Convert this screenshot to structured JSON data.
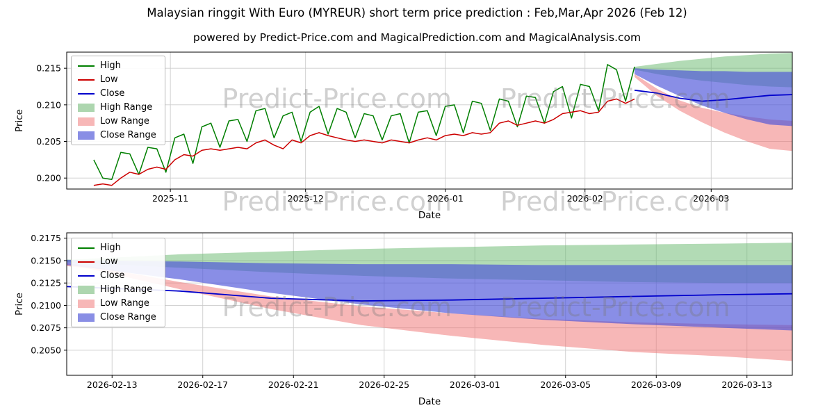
{
  "title": "Malaysian ringgit With Euro (MYREUR) short term price prediction : Feb,Mar,Apr 2026 (Feb 12)",
  "subtitle": "powered by Predict-Price.com and MagicalPrediction.com and MagicalAnalysis.com",
  "watermark": {
    "text": "Predict-Price.com"
  },
  "chart_data": [
    {
      "type": "line",
      "name": "history-and-prediction",
      "xlabel": "Date",
      "ylabel": "Price",
      "x_unit": "days since 2025-10-14",
      "xlim": [
        -5,
        156
      ],
      "ylim": [
        0.1985,
        0.2172
      ],
      "grid": true,
      "legend_position": "upper-left",
      "xticks": [
        {
          "v": 18,
          "label": "2025-11"
        },
        {
          "v": 48,
          "label": "2025-12"
        },
        {
          "v": 79,
          "label": "2026-01"
        },
        {
          "v": 110,
          "label": "2026-02"
        },
        {
          "v": 138,
          "label": "2026-03"
        }
      ],
      "yticks": [
        {
          "v": 0.2,
          "label": "0.200"
        },
        {
          "v": 0.205,
          "label": "0.205"
        },
        {
          "v": 0.21,
          "label": "0.210"
        },
        {
          "v": 0.215,
          "label": "0.215"
        }
      ],
      "legend": [
        {
          "label": "High",
          "swatch": "line",
          "color": "#007f00"
        },
        {
          "label": "Low",
          "swatch": "line",
          "color": "#cc0000"
        },
        {
          "label": "Close",
          "swatch": "line",
          "color": "#0000cc"
        },
        {
          "label": "High Range",
          "swatch": "patch",
          "color": "#add6af"
        },
        {
          "label": "Low Range",
          "swatch": "patch",
          "color": "#f7b7b7"
        },
        {
          "label": "Close Range",
          "swatch": "patch",
          "color": "#898ee5"
        }
      ],
      "bands": [
        {
          "name": "high-range",
          "color": "#66b86b",
          "opacity": 0.5,
          "x": [
            121,
            126,
            131,
            136,
            141,
            146,
            151,
            156
          ],
          "upper": [
            0.2152,
            0.2156,
            0.216,
            0.2163,
            0.2166,
            0.2168,
            0.217,
            0.2171
          ],
          "lower": [
            0.2148,
            0.2142,
            0.2137,
            0.2133,
            0.213,
            0.2127,
            0.2125,
            0.2124
          ]
        },
        {
          "name": "low-range",
          "color": "#f07070",
          "opacity": 0.5,
          "x": [
            121,
            126,
            131,
            136,
            141,
            146,
            151,
            156
          ],
          "upper": [
            0.2142,
            0.2122,
            0.2106,
            0.2096,
            0.2089,
            0.2084,
            0.208,
            0.2078
          ],
          "lower": [
            0.2138,
            0.2112,
            0.2092,
            0.2076,
            0.2062,
            0.205,
            0.204,
            0.2037
          ]
        },
        {
          "name": "close-range",
          "color": "#4a52d8",
          "opacity": 0.65,
          "x": [
            121,
            126,
            131,
            136,
            141,
            146,
            151,
            156
          ],
          "upper": [
            0.215,
            0.2148,
            0.2147,
            0.2146,
            0.2146,
            0.2145,
            0.2145,
            0.2145
          ],
          "lower": [
            0.2142,
            0.2126,
            0.2112,
            0.2099,
            0.2089,
            0.208,
            0.2073,
            0.2071
          ]
        }
      ],
      "lines": [
        {
          "name": "high",
          "color": "#007f00",
          "width": 1.5,
          "x": [
            1,
            3,
            5,
            7,
            9,
            11,
            13,
            15,
            17,
            19,
            21,
            23,
            25,
            27,
            29,
            31,
            33,
            35,
            37,
            39,
            41,
            43,
            45,
            47,
            49,
            51,
            53,
            55,
            57,
            59,
            61,
            63,
            65,
            67,
            69,
            71,
            73,
            75,
            77,
            79,
            81,
            83,
            85,
            87,
            89,
            91,
            93,
            95,
            97,
            99,
            101,
            103,
            105,
            107,
            109,
            111,
            113,
            115,
            117,
            119,
            121
          ],
          "y": [
            0.2025,
            0.2,
            0.1998,
            0.2035,
            0.2033,
            0.2005,
            0.2042,
            0.204,
            0.2008,
            0.2055,
            0.206,
            0.202,
            0.207,
            0.2075,
            0.2042,
            0.2078,
            0.208,
            0.205,
            0.2092,
            0.2095,
            0.2055,
            0.2085,
            0.209,
            0.205,
            0.209,
            0.2098,
            0.206,
            0.2095,
            0.209,
            0.2055,
            0.2088,
            0.2085,
            0.2052,
            0.2085,
            0.2088,
            0.2048,
            0.209,
            0.2092,
            0.2058,
            0.2098,
            0.21,
            0.2062,
            0.2105,
            0.2102,
            0.2065,
            0.2108,
            0.2105,
            0.207,
            0.2112,
            0.211,
            0.2075,
            0.2118,
            0.2125,
            0.2082,
            0.2128,
            0.2125,
            0.2092,
            0.2155,
            0.2148,
            0.2105,
            0.2152
          ]
        },
        {
          "name": "low",
          "color": "#cc0000",
          "width": 1.5,
          "x": [
            1,
            3,
            5,
            7,
            9,
            11,
            13,
            15,
            17,
            19,
            21,
            23,
            25,
            27,
            29,
            31,
            33,
            35,
            37,
            39,
            41,
            43,
            45,
            47,
            49,
            51,
            53,
            55,
            57,
            59,
            61,
            63,
            65,
            67,
            69,
            71,
            73,
            75,
            77,
            79,
            81,
            83,
            85,
            87,
            89,
            91,
            93,
            95,
            97,
            99,
            101,
            103,
            105,
            107,
            109,
            111,
            113,
            115,
            117,
            119,
            121
          ],
          "y": [
            0.199,
            0.1992,
            0.199,
            0.2,
            0.2008,
            0.2005,
            0.2012,
            0.2015,
            0.2012,
            0.2025,
            0.2032,
            0.203,
            0.2038,
            0.204,
            0.2038,
            0.204,
            0.2042,
            0.204,
            0.2048,
            0.2052,
            0.2045,
            0.204,
            0.2052,
            0.2048,
            0.2058,
            0.2062,
            0.2058,
            0.2055,
            0.2052,
            0.205,
            0.2052,
            0.205,
            0.2048,
            0.2052,
            0.205,
            0.2048,
            0.2052,
            0.2055,
            0.2052,
            0.2058,
            0.206,
            0.2058,
            0.2062,
            0.206,
            0.2062,
            0.2075,
            0.2078,
            0.2072,
            0.2075,
            0.2078,
            0.2075,
            0.208,
            0.2088,
            0.209,
            0.2092,
            0.2088,
            0.209,
            0.2105,
            0.2108,
            0.2102,
            0.2108
          ]
        },
        {
          "name": "close",
          "color": "#0000cc",
          "width": 1.8,
          "x": [
            121,
            126,
            131,
            136,
            141,
            146,
            151,
            156
          ],
          "y": [
            0.212,
            0.2116,
            0.2109,
            0.2105,
            0.2107,
            0.211,
            0.2113,
            0.2114
          ]
        }
      ]
    },
    {
      "type": "line",
      "name": "prediction-detail",
      "xlabel": "Date",
      "ylabel": "Price",
      "x_unit": "days since 2026-02-12",
      "xlim": [
        -1,
        31
      ],
      "ylim": [
        0.2022,
        0.2181
      ],
      "grid": true,
      "legend_position": "upper-left",
      "xticks": [
        {
          "v": 1,
          "label": "2026-02-13"
        },
        {
          "v": 5,
          "label": "2026-02-17"
        },
        {
          "v": 9,
          "label": "2026-02-21"
        },
        {
          "v": 13,
          "label": "2026-02-25"
        },
        {
          "v": 17,
          "label": "2026-03-01"
        },
        {
          "v": 21,
          "label": "2026-03-05"
        },
        {
          "v": 25,
          "label": "2026-03-09"
        },
        {
          "v": 29,
          "label": "2026-03-13"
        }
      ],
      "yticks": [
        {
          "v": 0.205,
          "label": "0.2050"
        },
        {
          "v": 0.2075,
          "label": "0.2075"
        },
        {
          "v": 0.21,
          "label": "0.2100"
        },
        {
          "v": 0.2125,
          "label": "0.2125"
        },
        {
          "v": 0.215,
          "label": "0.2150"
        },
        {
          "v": 0.2175,
          "label": "0.2175"
        }
      ],
      "legend": [
        {
          "label": "High",
          "swatch": "line",
          "color": "#007f00"
        },
        {
          "label": "Low",
          "swatch": "line",
          "color": "#cc0000"
        },
        {
          "label": "Close",
          "swatch": "line",
          "color": "#0000cc"
        },
        {
          "label": "High Range",
          "swatch": "patch",
          "color": "#add6af"
        },
        {
          "label": "Low Range",
          "swatch": "patch",
          "color": "#f7b7b7"
        },
        {
          "label": "Close Range",
          "swatch": "patch",
          "color": "#898ee5"
        }
      ],
      "bands": [
        {
          "name": "high-range",
          "color": "#66b86b",
          "opacity": 0.5,
          "x": [
            -1,
            0,
            4,
            8,
            12,
            16,
            20,
            24,
            28,
            31
          ],
          "upper": [
            0.2151,
            0.2152,
            0.2157,
            0.216,
            0.2163,
            0.2165,
            0.2167,
            0.2168,
            0.2169,
            0.217
          ],
          "lower": [
            0.2148,
            0.2147,
            0.2142,
            0.2137,
            0.2133,
            0.213,
            0.2128,
            0.2126,
            0.2125,
            0.2125
          ]
        },
        {
          "name": "low-range",
          "color": "#f07070",
          "opacity": 0.5,
          "x": [
            -1,
            0,
            4,
            8,
            12,
            16,
            20,
            24,
            28,
            31
          ],
          "upper": [
            0.2147,
            0.2144,
            0.2126,
            0.211,
            0.2099,
            0.2091,
            0.2085,
            0.2081,
            0.2079,
            0.2078
          ],
          "lower": [
            0.2144,
            0.2141,
            0.2118,
            0.2096,
            0.2078,
            0.2066,
            0.2056,
            0.2048,
            0.2043,
            0.2038
          ]
        },
        {
          "name": "close-range",
          "color": "#4a52d8",
          "opacity": 0.65,
          "x": [
            -1,
            0,
            4,
            8,
            12,
            16,
            20,
            24,
            28,
            31
          ],
          "upper": [
            0.2151,
            0.215,
            0.2149,
            0.2147,
            0.2146,
            0.2146,
            0.2145,
            0.2145,
            0.2145,
            0.2145
          ],
          "lower": [
            0.2145,
            0.2142,
            0.2129,
            0.2114,
            0.2101,
            0.2091,
            0.2084,
            0.2079,
            0.2075,
            0.2072
          ]
        }
      ],
      "lines": [
        {
          "name": "close",
          "color": "#0000cc",
          "width": 1.8,
          "x": [
            -1,
            0,
            4,
            8,
            12,
            16,
            20,
            24,
            28,
            31
          ],
          "y": [
            0.2121,
            0.212,
            0.2116,
            0.2108,
            0.2105,
            0.2106,
            0.2108,
            0.211,
            0.2112,
            0.2113
          ]
        }
      ]
    }
  ]
}
